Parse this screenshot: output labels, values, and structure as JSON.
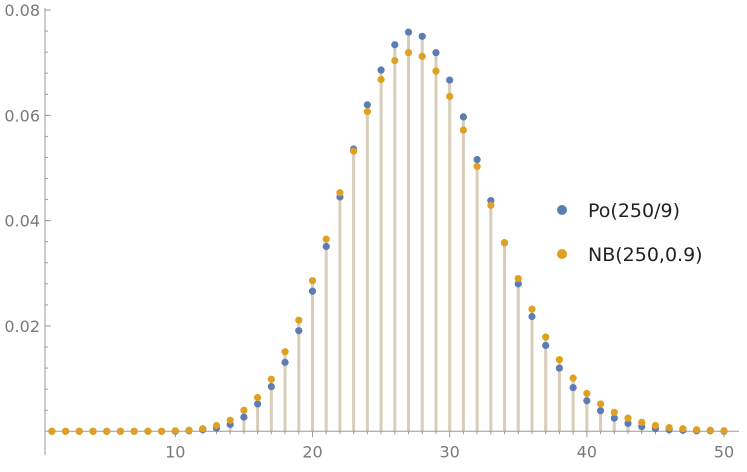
{
  "chart_data": {
    "type": "scatter",
    "title": "",
    "xlabel": "",
    "ylabel": "",
    "xlim": [
      0.5,
      50.8
    ],
    "ylim": [
      -0.0045,
      0.08
    ],
    "grid": false,
    "x_ticks": [
      10,
      20,
      30,
      40,
      50
    ],
    "x_tick_labels": [
      "10",
      "20",
      "30",
      "40",
      "50"
    ],
    "y_ticks": [
      0.02,
      0.04,
      0.06,
      0.08
    ],
    "y_tick_labels": [
      "0.02",
      "0.04",
      "0.06",
      "0.08"
    ],
    "legend_position": "right",
    "x": [
      1,
      2,
      3,
      4,
      5,
      6,
      7,
      8,
      9,
      10,
      11,
      12,
      13,
      14,
      15,
      16,
      17,
      18,
      19,
      20,
      21,
      22,
      23,
      24,
      25,
      26,
      27,
      28,
      29,
      30,
      31,
      32,
      33,
      34,
      35,
      36,
      37,
      38,
      39,
      40,
      41,
      42,
      43,
      44,
      45,
      46,
      47,
      48,
      49,
      50
    ],
    "series": [
      {
        "name": "Po(250/9)",
        "color": "#5b7db5",
        "values": [
          0,
          0,
          0,
          0,
          0,
          0,
          0,
          0,
          0,
          0,
          0.0001,
          0.0003,
          0.0006,
          0.0013,
          0.0027,
          0.0052,
          0.0085,
          0.0131,
          0.0191,
          0.0266,
          0.0351,
          0.0445,
          0.0536,
          0.062,
          0.0686,
          0.0734,
          0.0758,
          0.075,
          0.0719,
          0.0667,
          0.0597,
          0.0516,
          0.0438,
          0.0358,
          0.028,
          0.0218,
          0.0163,
          0.012,
          0.0083,
          0.0058,
          0.0039,
          0.0025,
          0.0015,
          0.0009,
          0.0005,
          0.0003,
          0.0002,
          0.0001,
          0.0001,
          0
        ]
      },
      {
        "name": "NB(250,0.9)",
        "color": "#e0a021",
        "values": [
          0,
          0,
          0,
          0,
          0,
          0,
          0,
          0,
          0,
          0.0001,
          0.0002,
          0.0005,
          0.0011,
          0.0021,
          0.004,
          0.0064,
          0.0099,
          0.0151,
          0.0211,
          0.0286,
          0.0365,
          0.0453,
          0.0532,
          0.0607,
          0.0668,
          0.0704,
          0.0719,
          0.0712,
          0.0684,
          0.0636,
          0.0572,
          0.0503,
          0.0429,
          0.0358,
          0.029,
          0.0232,
          0.0179,
          0.0136,
          0.0101,
          0.0072,
          0.0052,
          0.0036,
          0.0025,
          0.0017,
          0.0011,
          0.0007,
          0.0005,
          0.0003,
          0.0002,
          0.0001
        ]
      }
    ],
    "stem_color": "#d8cdb9"
  }
}
